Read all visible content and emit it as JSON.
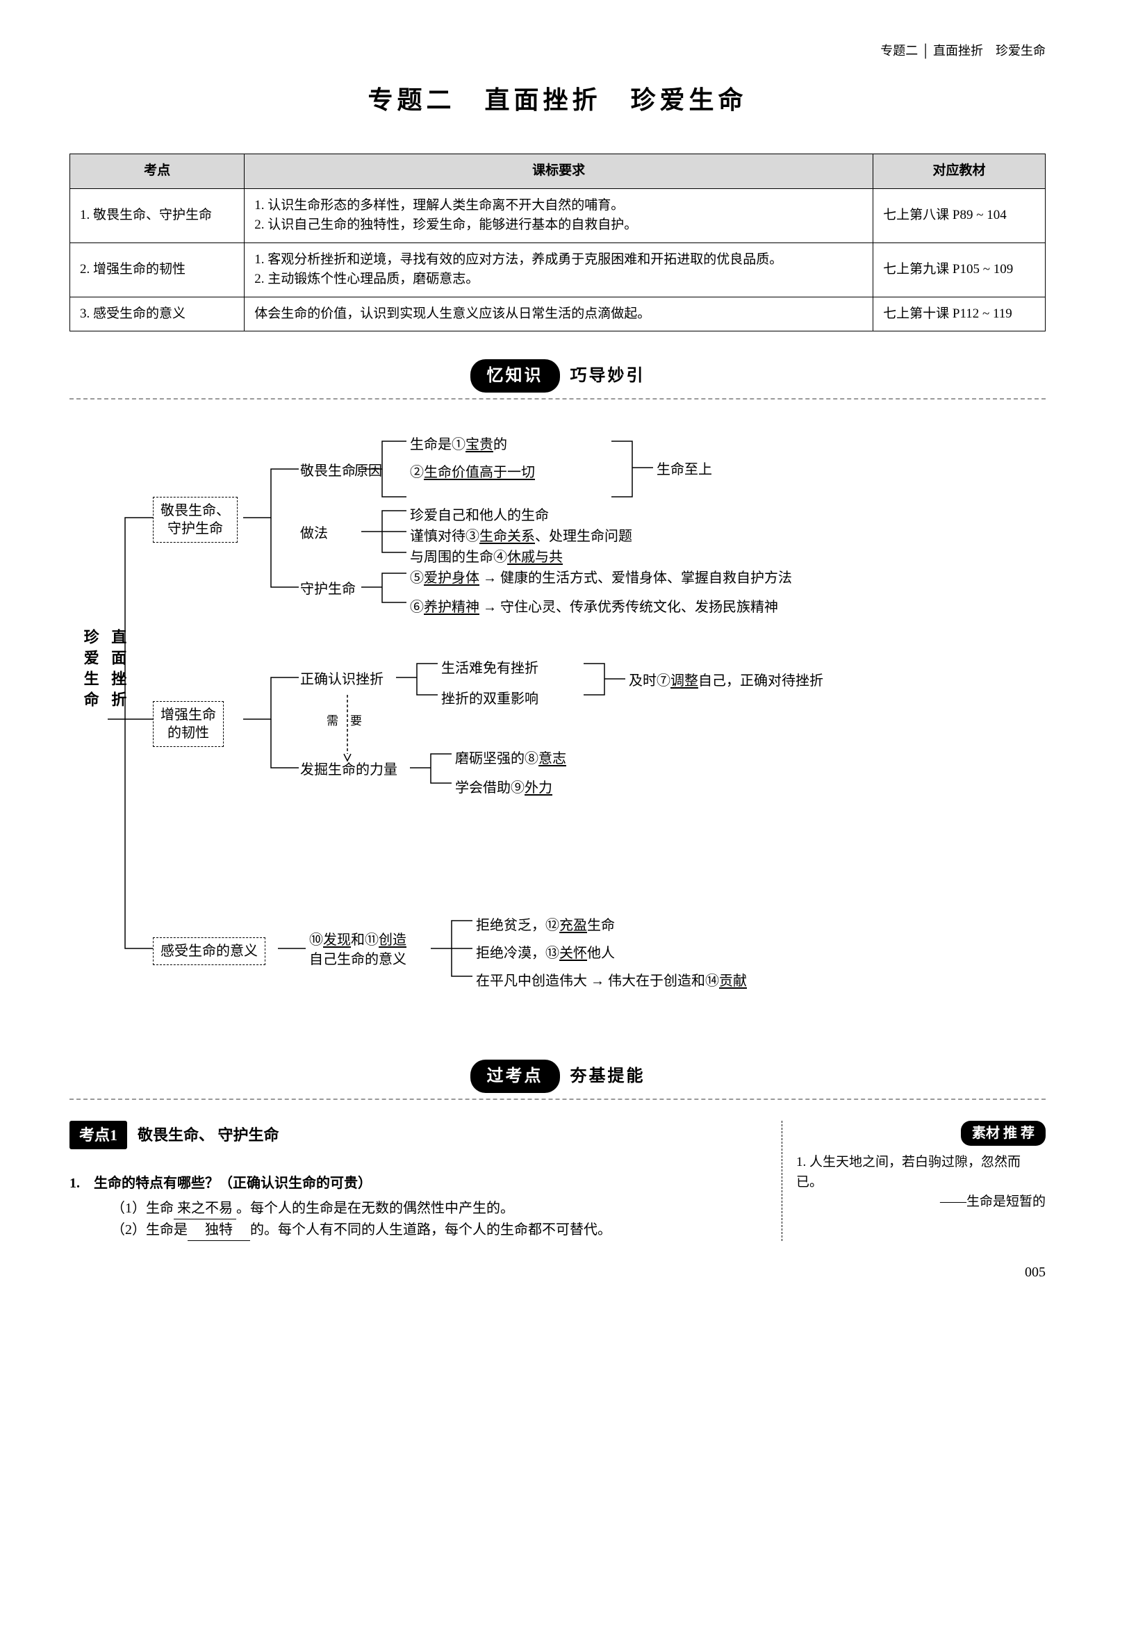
{
  "header": {
    "breadcrumb": "专题二 │ 直面挫折　珍爱生命"
  },
  "title": "专题二　直面挫折　珍爱生命",
  "table": {
    "headers": [
      "考点",
      "课标要求",
      "对应教材"
    ],
    "rows": [
      {
        "kd": "1. 敬畏生命、守护生命",
        "req": "1. 认识生命形态的多样性，理解人类生命离不开大自然的哺育。\n2. 认识自己生命的独特性，珍爱生命，能够进行基本的自救自护。",
        "tb": "七上第八课 P89 ~ 104"
      },
      {
        "kd": "2. 增强生命的韧性",
        "req": "1. 客观分析挫折和逆境，寻找有效的应对方法，养成勇于克服困难和开拓进取的优良品质。\n2. 主动锻炼个性心理品质，磨砺意志。",
        "tb": "七上第九课 P105 ~ 109"
      },
      {
        "kd": "3. 感受生命的意义",
        "req": "体会生命的价值，认识到实现人生意义应该从日常生活的点滴做起。",
        "tb": "七上第十课 P112 ~ 119"
      }
    ]
  },
  "section1": {
    "pill": "忆知识",
    "sub": "巧导妙引"
  },
  "mind": {
    "root_l1": "直面挫折",
    "root_l2": "珍爱生命",
    "b1": {
      "box": "敬畏生命、\n守护生命",
      "n1": "敬畏生命",
      "n1a": "原因",
      "n1a1_pre": "生命是①",
      "n1a1_ul": "宝贵",
      "n1a1_suf": "的",
      "n1a2": "②",
      "n1a2_ul": "生命价值高于一切",
      "n1a_right": "生命至上",
      "n1b": "做法",
      "n1b1": "珍爱自己和他人的生命",
      "n1b2_pre": "谨慎对待③",
      "n1b2_ul": "生命关系",
      "n1b2_suf": "、处理生命问题",
      "n1b3_pre": "与周围的生命④",
      "n1b3_ul": "休戚与共",
      "n2": "守护生命",
      "n2a": "⑤",
      "n2a_ul": "爱护身体",
      "n2a_suf": " → 健康的生活方式、爱惜身体、掌握自救自护方法",
      "n2b": "⑥",
      "n2b_ul": "养护精神",
      "n2b_suf": " → 守住心灵、传承优秀传统文化、发扬民族精神"
    },
    "b2": {
      "box": "增强生命\n的韧性",
      "n1": "正确认识挫折",
      "n1a": "生活难免有挫折",
      "n1b": "挫折的双重影响",
      "n1_right_pre": "及时⑦",
      "n1_right_ul": "调整",
      "n1_right_suf": "自己，正确对待挫折",
      "mid": "需　要",
      "n2": "发掘生命的力量",
      "n2a_pre": "磨砺坚强的⑧",
      "n2a_ul": "意志",
      "n2b_pre": "学会借助⑨",
      "n2b_ul": "外力"
    },
    "b3": {
      "box": "感受生命的意义",
      "n1_pre": "⑩",
      "n1_ul": "发现",
      "n1_mid": "和⑪",
      "n1_ul2": "创造",
      "n1_suf": "\n自己生命的意义",
      "r1_pre": "拒绝贫乏，⑫",
      "r1_ul": "充盈",
      "r1_suf": "生命",
      "r2_pre": "拒绝冷漠，⑬",
      "r2_ul": "关怀",
      "r2_suf": "他人",
      "r3_pre": "在平凡中创造伟大 → 伟大在于创造和⑭",
      "r3_ul": "贡献"
    }
  },
  "section2": {
    "pill": "过考点",
    "sub": "夯基提能"
  },
  "kaodian": {
    "badge": "考点1",
    "title": "敬畏生命、 守护生命",
    "q": "1.　生命的特点有哪些？（正确认识生命的可贵）",
    "a1_pre": "（1）生命",
    "a1_blank": "来之不易",
    "a1_suf": "。每个人的生命是在无数的偶然性中产生的。",
    "a2_pre": "（2）生命是",
    "a2_blank": "独特",
    "a2_suf": "的。每个人有不同的人生道路，每个人的生命都不可替代。"
  },
  "sucai": {
    "badge": "素材 推 荐",
    "line1": "1. 人生天地之间，若白驹过隙，忽然而已。",
    "line2": "——生命是短暂的"
  },
  "page": "005"
}
